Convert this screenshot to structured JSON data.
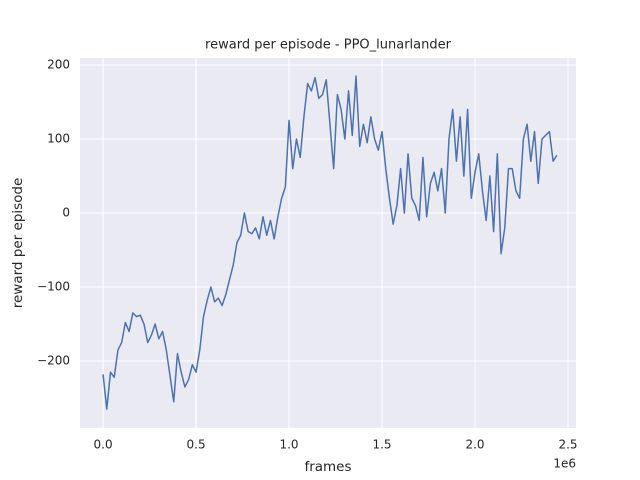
{
  "chart_data": {
    "type": "line",
    "title": "reward per episode - PPO_lunarlander",
    "x_label": "frames",
    "y_label": "reward per episode",
    "x_offset_label": "1e6",
    "xlim": [
      -124000,
      2543000
    ],
    "ylim": [
      -290.5,
      209.5
    ],
    "xticks": [
      {
        "value": 0,
        "label": "0.0"
      },
      {
        "value": 500000,
        "label": "0.5"
      },
      {
        "value": 1000000,
        "label": "1.0"
      },
      {
        "value": 1500000,
        "label": "1.5"
      },
      {
        "value": 2000000,
        "label": "2.0"
      },
      {
        "value": 2500000,
        "label": "2.5"
      }
    ],
    "yticks": [
      {
        "value": -200,
        "label": "−200"
      },
      {
        "value": -100,
        "label": "−100"
      },
      0,
      100,
      200
    ],
    "grid": true,
    "series": [
      {
        "name": "reward per episode",
        "color": "#4c72b0",
        "x": [
          0,
          20000,
          40000,
          60000,
          80000,
          100000,
          120000,
          140000,
          160000,
          180000,
          200000,
          220000,
          240000,
          260000,
          280000,
          300000,
          320000,
          340000,
          360000,
          380000,
          400000,
          420000,
          440000,
          460000,
          480000,
          500000,
          520000,
          540000,
          560000,
          580000,
          600000,
          620000,
          640000,
          660000,
          680000,
          700000,
          720000,
          740000,
          760000,
          780000,
          800000,
          820000,
          840000,
          860000,
          880000,
          900000,
          920000,
          940000,
          960000,
          980000,
          1000000,
          1020000,
          1040000,
          1060000,
          1080000,
          1100000,
          1120000,
          1140000,
          1160000,
          1180000,
          1200000,
          1220000,
          1240000,
          1260000,
          1280000,
          1300000,
          1320000,
          1340000,
          1360000,
          1380000,
          1400000,
          1420000,
          1440000,
          1460000,
          1480000,
          1500000,
          1520000,
          1540000,
          1560000,
          1580000,
          1600000,
          1620000,
          1640000,
          1660000,
          1680000,
          1700000,
          1720000,
          1740000,
          1760000,
          1780000,
          1800000,
          1820000,
          1840000,
          1860000,
          1880000,
          1900000,
          1920000,
          1940000,
          1960000,
          1980000,
          2000000,
          2020000,
          2040000,
          2060000,
          2080000,
          2100000,
          2120000,
          2140000,
          2160000,
          2180000,
          2200000,
          2220000,
          2240000,
          2260000,
          2280000,
          2300000,
          2320000,
          2340000,
          2360000,
          2380000,
          2400000,
          2420000,
          2440000
        ],
        "values": [
          -218,
          -265,
          -215,
          -222,
          -185,
          -175,
          -148,
          -160,
          -135,
          -140,
          -138,
          -150,
          -175,
          -165,
          -150,
          -170,
          -160,
          -185,
          -220,
          -255,
          -190,
          -215,
          -235,
          -225,
          -205,
          -215,
          -185,
          -140,
          -118,
          -100,
          -120,
          -115,
          -125,
          -110,
          -90,
          -70,
          -40,
          -30,
          0,
          -25,
          -28,
          -20,
          -35,
          -5,
          -30,
          -10,
          -35,
          -5,
          20,
          35,
          125,
          60,
          100,
          75,
          130,
          175,
          165,
          183,
          155,
          160,
          180,
          120,
          60,
          160,
          140,
          100,
          165,
          105,
          185,
          90,
          120,
          95,
          130,
          100,
          85,
          110,
          60,
          20,
          -15,
          10,
          60,
          0,
          80,
          20,
          10,
          -10,
          75,
          -5,
          40,
          55,
          30,
          60,
          0,
          100,
          140,
          70,
          130,
          50,
          140,
          20,
          55,
          80,
          30,
          -10,
          50,
          -25,
          80,
          -55,
          -20,
          60,
          60,
          30,
          20,
          100,
          120,
          70,
          110,
          40,
          100,
          105,
          110,
          70,
          78
        ]
      }
    ]
  }
}
